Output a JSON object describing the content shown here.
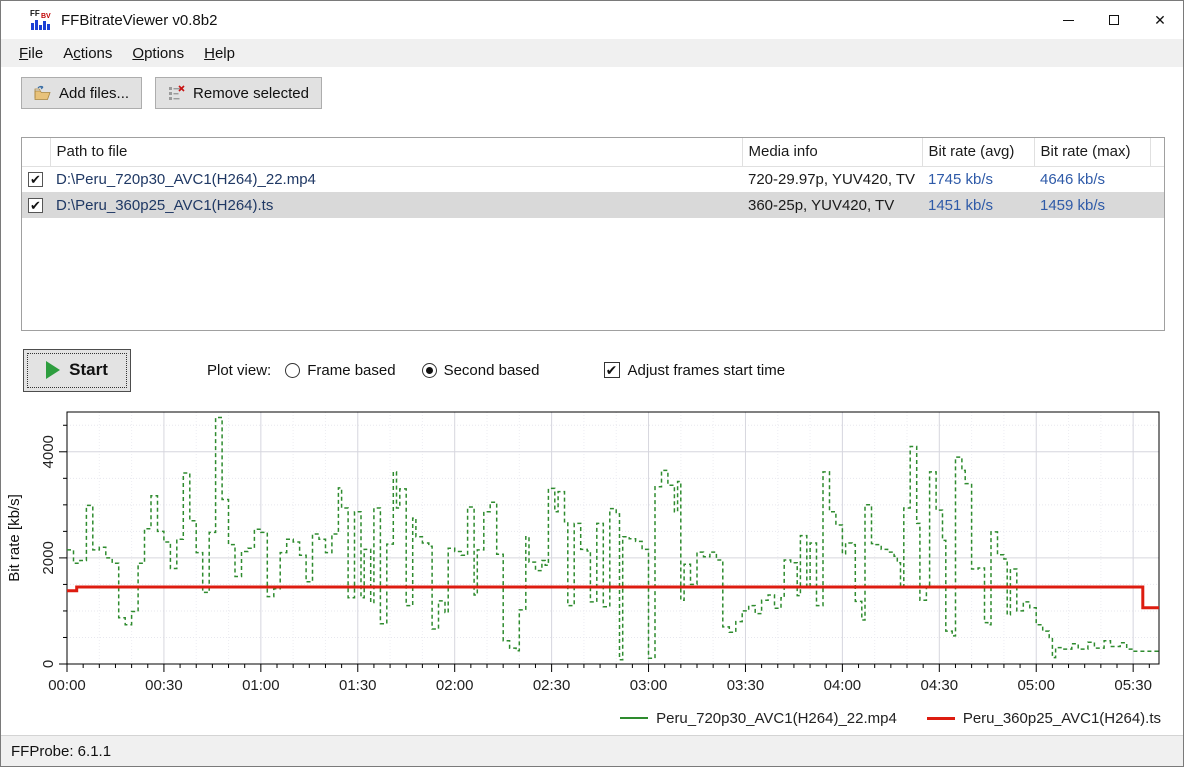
{
  "window": {
    "title": "FFBitrateViewer v0.8b2"
  },
  "menubar": {
    "items": [
      {
        "id": "file",
        "pre": "",
        "u": "F",
        "post": "ile"
      },
      {
        "id": "actions",
        "pre": "A",
        "u": "c",
        "post": "tions"
      },
      {
        "id": "options",
        "pre": "",
        "u": "O",
        "post": "ptions"
      },
      {
        "id": "help",
        "pre": "",
        "u": "H",
        "post": "elp"
      }
    ]
  },
  "toolbar": {
    "add_files_label": "Add files...",
    "remove_selected_label": "Remove selected"
  },
  "file_table": {
    "columns": [
      "",
      "Path to file",
      "Media info",
      "Bit rate (avg)",
      "Bit rate (max)"
    ],
    "rows": [
      {
        "checked": true,
        "path": "D:\\Peru_720p30_AVC1(H264)_22.mp4",
        "media_info": "720-29.97p, YUV420, TV",
        "bitrate_avg": "1745 kb/s",
        "bitrate_max": "4646 kb/s",
        "selected": false
      },
      {
        "checked": true,
        "path": "D:\\Peru_360p25_AVC1(H264).ts",
        "media_info": "360-25p, YUV420, TV",
        "bitrate_avg": "1451 kb/s",
        "bitrate_max": "1459 kb/s",
        "selected": true
      }
    ]
  },
  "controls": {
    "start_label": "Start",
    "plot_view_label": "Plot view:",
    "radio_frame_based": {
      "label": "Frame based",
      "checked": false
    },
    "radio_second_based": {
      "label": "Second based",
      "checked": true
    },
    "adjust_checkbox": {
      "label": "Adjust frames start time",
      "checked": true
    }
  },
  "chart_data": {
    "type": "line",
    "title": "",
    "xlabel": "",
    "ylabel": "Bit rate [kb/s]",
    "x_unit": "time mm:ss",
    "xlim": [
      0,
      338
    ],
    "ylim": [
      0,
      4750
    ],
    "grid": true,
    "legend_position": "bottom-right",
    "x_major_tick_step_s": 30,
    "x_minor_tick_step_s": 5,
    "x_minor_grid_step_s": 10,
    "y_labeled_ticks": [
      0,
      2000,
      4000
    ],
    "y_minor_step": 500,
    "x_tick_labels": [
      "00:00",
      "00:30",
      "01:00",
      "01:30",
      "02:00",
      "02:30",
      "03:00",
      "03:30",
      "04:00",
      "04:30",
      "05:00",
      "05:30"
    ],
    "series": [
      {
        "name": "Peru_720p30_AVC1(H264)_22.mp4",
        "color": "#2e8b2e",
        "style": "dashed",
        "step": true,
        "points": [
          [
            0,
            2150
          ],
          [
            2,
            1900
          ],
          [
            4,
            1950
          ],
          [
            6,
            2990
          ],
          [
            8,
            2150
          ],
          [
            10,
            2200
          ],
          [
            12,
            2000
          ],
          [
            14,
            1900
          ],
          [
            16,
            870
          ],
          [
            18,
            740
          ],
          [
            20,
            990
          ],
          [
            22,
            1900
          ],
          [
            24,
            2550
          ],
          [
            26,
            3170
          ],
          [
            28,
            2500
          ],
          [
            30,
            2300
          ],
          [
            32,
            1800
          ],
          [
            34,
            2350
          ],
          [
            36,
            3600
          ],
          [
            38,
            2700
          ],
          [
            40,
            2100
          ],
          [
            42,
            1350
          ],
          [
            44,
            2480
          ],
          [
            46,
            4646
          ],
          [
            48,
            3100
          ],
          [
            50,
            2250
          ],
          [
            52,
            1650
          ],
          [
            54,
            2120
          ],
          [
            56,
            2180
          ],
          [
            58,
            2540
          ],
          [
            60,
            2480
          ],
          [
            62,
            1270
          ],
          [
            64,
            1420
          ],
          [
            66,
            2100
          ],
          [
            68,
            2350
          ],
          [
            70,
            2300
          ],
          [
            72,
            2050
          ],
          [
            74,
            1550
          ],
          [
            76,
            2450
          ],
          [
            78,
            2350
          ],
          [
            80,
            2100
          ],
          [
            82,
            2450
          ],
          [
            84,
            3320
          ],
          [
            85,
            2940
          ],
          [
            87,
            1250
          ],
          [
            89,
            2870
          ],
          [
            91,
            1250
          ],
          [
            92,
            2160
          ],
          [
            94,
            1160
          ],
          [
            95,
            2940
          ],
          [
            97,
            760
          ],
          [
            99,
            2260
          ],
          [
            101,
            3620
          ],
          [
            102,
            2940
          ],
          [
            103,
            3300
          ],
          [
            105,
            1100
          ],
          [
            107,
            2750
          ],
          [
            108,
            2400
          ],
          [
            110,
            2280
          ],
          [
            112,
            2220
          ],
          [
            113,
            660
          ],
          [
            115,
            1190
          ],
          [
            117,
            970
          ],
          [
            118,
            2180
          ],
          [
            120,
            2120
          ],
          [
            122,
            2050
          ],
          [
            124,
            2960
          ],
          [
            126,
            1300
          ],
          [
            127,
            2150
          ],
          [
            129,
            2870
          ],
          [
            131,
            3050
          ],
          [
            133,
            2070
          ],
          [
            135,
            440
          ],
          [
            137,
            300
          ],
          [
            139,
            250
          ],
          [
            140,
            1020
          ],
          [
            142,
            2400
          ],
          [
            143,
            1920
          ],
          [
            145,
            1760
          ],
          [
            147,
            1950
          ],
          [
            148,
            1860
          ],
          [
            149,
            3310
          ],
          [
            151,
            2870
          ],
          [
            152,
            3250
          ],
          [
            154,
            2680
          ],
          [
            155,
            1100
          ],
          [
            157,
            2650
          ],
          [
            159,
            2160
          ],
          [
            161,
            2130
          ],
          [
            162,
            1170
          ],
          [
            164,
            2650
          ],
          [
            166,
            1080
          ],
          [
            168,
            2930
          ],
          [
            170,
            2830
          ],
          [
            171,
            80
          ],
          [
            172,
            2400
          ],
          [
            174,
            2360
          ],
          [
            176,
            2310
          ],
          [
            178,
            2160
          ],
          [
            180,
            110
          ],
          [
            182,
            3340
          ],
          [
            184,
            3650
          ],
          [
            186,
            3370
          ],
          [
            188,
            2870
          ],
          [
            189,
            3440
          ],
          [
            190,
            1200
          ],
          [
            191,
            1880
          ],
          [
            193,
            1500
          ],
          [
            195,
            2110
          ],
          [
            197,
            2020
          ],
          [
            199,
            2110
          ],
          [
            201,
            1960
          ],
          [
            203,
            700
          ],
          [
            205,
            600
          ],
          [
            207,
            800
          ],
          [
            209,
            1000
          ],
          [
            211,
            1100
          ],
          [
            213,
            950
          ],
          [
            215,
            1200
          ],
          [
            217,
            1300
          ],
          [
            219,
            1050
          ],
          [
            221,
            1250
          ],
          [
            222,
            1960
          ],
          [
            224,
            1910
          ],
          [
            226,
            1290
          ],
          [
            227,
            2420
          ],
          [
            229,
            1450
          ],
          [
            230,
            2280
          ],
          [
            232,
            1100
          ],
          [
            234,
            3620
          ],
          [
            236,
            2870
          ],
          [
            238,
            2620
          ],
          [
            240,
            2080
          ],
          [
            241,
            2280
          ],
          [
            243,
            2250
          ],
          [
            244,
            1180
          ],
          [
            246,
            830
          ],
          [
            247,
            3000
          ],
          [
            249,
            2270
          ],
          [
            250,
            2250
          ],
          [
            252,
            2160
          ],
          [
            254,
            2110
          ],
          [
            256,
            2030
          ],
          [
            257,
            1910
          ],
          [
            258,
            1450
          ],
          [
            259,
            2940
          ],
          [
            261,
            4100
          ],
          [
            263,
            2650
          ],
          [
            264,
            1200
          ],
          [
            266,
            1450
          ],
          [
            267,
            3620
          ],
          [
            269,
            2900
          ],
          [
            271,
            2330
          ],
          [
            272,
            620
          ],
          [
            274,
            530
          ],
          [
            275,
            3900
          ],
          [
            277,
            3650
          ],
          [
            278,
            3400
          ],
          [
            280,
            1790
          ],
          [
            282,
            1810
          ],
          [
            284,
            780
          ],
          [
            285,
            740
          ],
          [
            286,
            2490
          ],
          [
            288,
            2060
          ],
          [
            290,
            1980
          ],
          [
            291,
            930
          ],
          [
            292,
            1790
          ],
          [
            294,
            1000
          ],
          [
            296,
            1170
          ],
          [
            298,
            1060
          ],
          [
            300,
            740
          ],
          [
            302,
            620
          ],
          [
            304,
            500
          ],
          [
            305,
            120
          ],
          [
            306,
            310
          ],
          [
            308,
            280
          ],
          [
            311,
            380
          ],
          [
            313,
            280
          ],
          [
            316,
            410
          ],
          [
            318,
            300
          ],
          [
            321,
            440
          ],
          [
            323,
            330
          ],
          [
            326,
            400
          ],
          [
            328,
            280
          ],
          [
            330,
            240
          ],
          [
            338,
            240
          ]
        ]
      },
      {
        "name": "Peru_360p25_AVC1(H264).ts",
        "color": "#dd1c10",
        "style": "solid",
        "step": true,
        "points": [
          [
            0,
            1380
          ],
          [
            3,
            1451
          ],
          [
            332,
            1451
          ],
          [
            333,
            1060
          ],
          [
            338,
            1060
          ]
        ]
      }
    ]
  },
  "status_bar": {
    "text": "FFProbe: 6.1.1"
  },
  "colors": {
    "path_text": "#1f3864",
    "rate_text": "#2e5aa8",
    "selection_bg": "#d9d9d9",
    "series_green": "#2e8b2e",
    "series_red": "#dd1c10"
  }
}
